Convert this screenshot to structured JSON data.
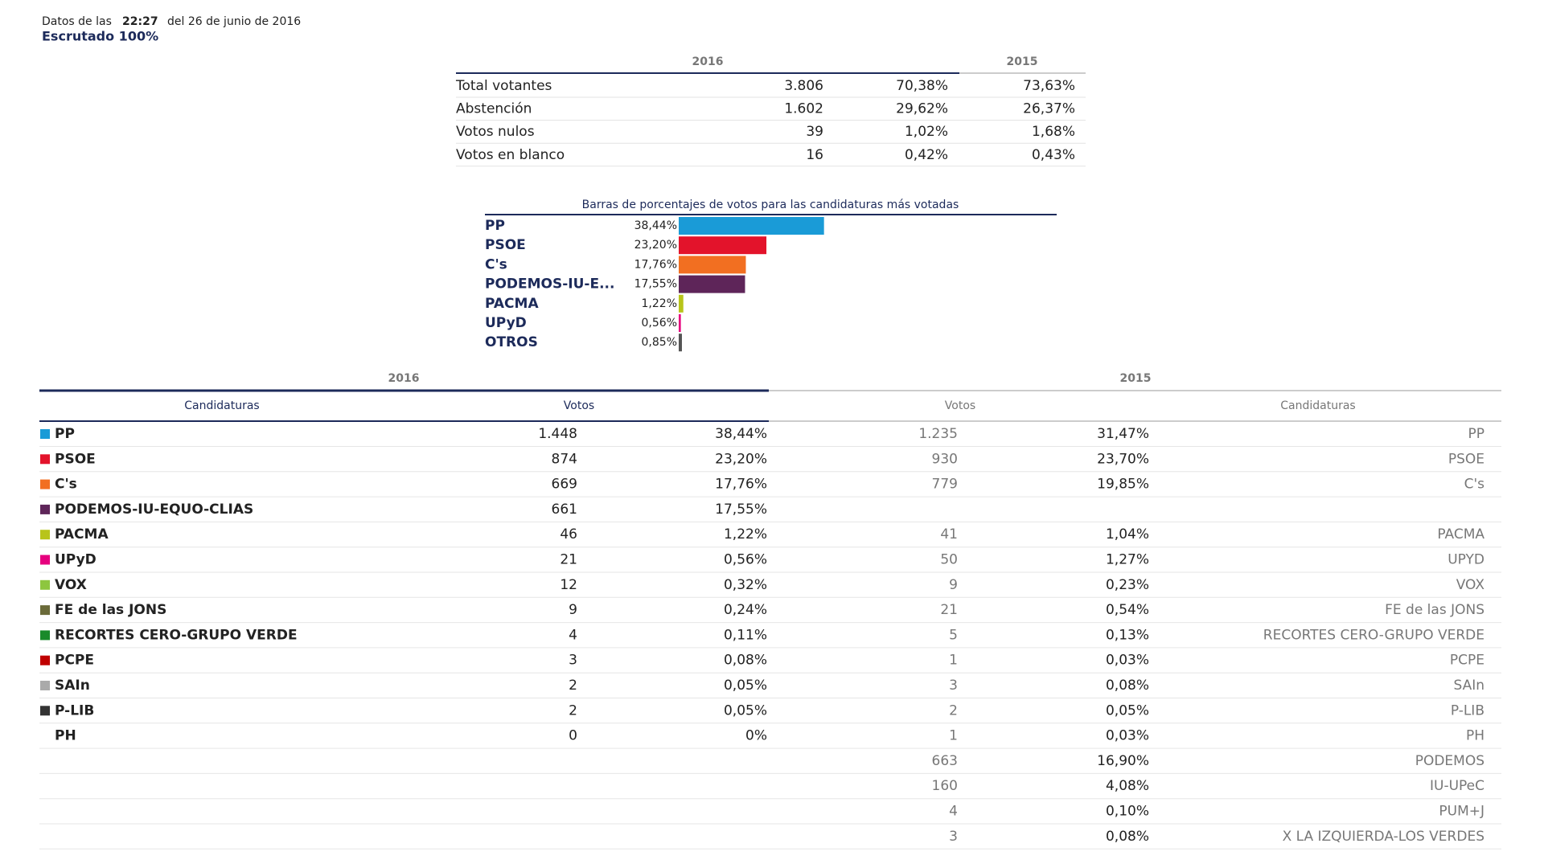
{
  "header": {
    "prefix": "Datos de las",
    "time": "22:27",
    "date": "del 26 de junio de 2016",
    "scrutiny": "Escrutado 100%"
  },
  "summary": {
    "columns": [
      "2016",
      "2015"
    ],
    "rows": [
      [
        "Total votantes",
        "3.806",
        "70,38%",
        "73,63%"
      ],
      [
        "Abstención",
        "1.602",
        "29,62%",
        "26,37%"
      ],
      [
        "Votos nulos",
        "39",
        "1,02%",
        "1,68%"
      ],
      [
        "Votos en blanco",
        "16",
        "0,42%",
        "0,43%"
      ]
    ]
  },
  "chart_data": {
    "type": "hbar",
    "title": "Barras de porcentajes de votos para las candidaturas más votadas",
    "categories": [
      "PP",
      "PSOE",
      "C's",
      "PODEMOS-IU-E...",
      "PACMA",
      "UPyD",
      "OTROS"
    ],
    "values": [
      38.44,
      23.2,
      17.76,
      17.55,
      1.22,
      0.56,
      0.85
    ],
    "value_labels": [
      "38,44%",
      "23,20%",
      "17,76%",
      "17,55%",
      "1,22%",
      "0,56%",
      "0,85%"
    ],
    "colors": [
      "#1a9bd7",
      "#e3132b",
      "#f26f21",
      "#5e2559",
      "#b8c41a",
      "#e6007e",
      "#555555"
    ],
    "xlim": [
      0,
      100
    ]
  },
  "results": {
    "years": [
      "2016",
      "2015"
    ],
    "columns": [
      "Candidaturas",
      "Votos",
      "Votos",
      "Candidaturas"
    ],
    "rows": [
      {
        "color": "#1a9bd7",
        "name": "PP",
        "votes": "1.448",
        "pct": "38,44%",
        "votes_prev": "1.235",
        "pct_prev": "31,47%",
        "name_prev": "PP"
      },
      {
        "color": "#e3132b",
        "name": "PSOE",
        "votes": "874",
        "pct": "23,20%",
        "votes_prev": "930",
        "pct_prev": "23,70%",
        "name_prev": "PSOE"
      },
      {
        "color": "#f26f21",
        "name": "C's",
        "votes": "669",
        "pct": "17,76%",
        "votes_prev": "779",
        "pct_prev": "19,85%",
        "name_prev": "C's"
      },
      {
        "color": "#5e2559",
        "name": "PODEMOS-IU-EQUO-CLIAS",
        "votes": "661",
        "pct": "17,55%",
        "votes_prev": null,
        "pct_prev": null,
        "name_prev": null
      },
      {
        "color": "#b8c41a",
        "name": "PACMA",
        "votes": "46",
        "pct": "1,22%",
        "votes_prev": "41",
        "pct_prev": "1,04%",
        "name_prev": "PACMA"
      },
      {
        "color": "#e6007e",
        "name": "UPyD",
        "votes": "21",
        "pct": "0,56%",
        "votes_prev": "50",
        "pct_prev": "1,27%",
        "name_prev": "UPYD"
      },
      {
        "color": "#8dc63f",
        "name": "VOX",
        "votes": "12",
        "pct": "0,32%",
        "votes_prev": "9",
        "pct_prev": "0,23%",
        "name_prev": "VOX"
      },
      {
        "color": "#6b6b3a",
        "name": "FE de las JONS",
        "votes": "9",
        "pct": "0,24%",
        "votes_prev": "21",
        "pct_prev": "0,54%",
        "name_prev": "FE de las JONS"
      },
      {
        "color": "#1a8a2a",
        "name": "RECORTES CERO-GRUPO VERDE",
        "votes": "4",
        "pct": "0,11%",
        "votes_prev": "5",
        "pct_prev": "0,13%",
        "name_prev": "RECORTES CERO-GRUPO VERDE"
      },
      {
        "color": "#c00000",
        "name": "PCPE",
        "votes": "3",
        "pct": "0,08%",
        "votes_prev": "1",
        "pct_prev": "0,03%",
        "name_prev": "PCPE"
      },
      {
        "color": "#aaaaaa",
        "name": "SAIn",
        "votes": "2",
        "pct": "0,05%",
        "votes_prev": "3",
        "pct_prev": "0,08%",
        "name_prev": "SAIn"
      },
      {
        "color": "#333333",
        "name": "P-LIB",
        "votes": "2",
        "pct": "0,05%",
        "votes_prev": "2",
        "pct_prev": "0,05%",
        "name_prev": "P-LIB"
      },
      {
        "color": null,
        "name": "PH",
        "votes": "0",
        "pct": "0%",
        "votes_prev": "1",
        "pct_prev": "0,03%",
        "name_prev": "PH"
      },
      {
        "color": null,
        "name": null,
        "votes": null,
        "pct": null,
        "votes_prev": "663",
        "pct_prev": "16,90%",
        "name_prev": "PODEMOS"
      },
      {
        "color": null,
        "name": null,
        "votes": null,
        "pct": null,
        "votes_prev": "160",
        "pct_prev": "4,08%",
        "name_prev": "IU-UPeC"
      },
      {
        "color": null,
        "name": null,
        "votes": null,
        "pct": null,
        "votes_prev": "4",
        "pct_prev": "0,10%",
        "name_prev": "PUM+J"
      },
      {
        "color": null,
        "name": null,
        "votes": null,
        "pct": null,
        "votes_prev": "3",
        "pct_prev": "0,08%",
        "name_prev": "X LA IZQUIERDA-LOS VERDES"
      }
    ]
  }
}
